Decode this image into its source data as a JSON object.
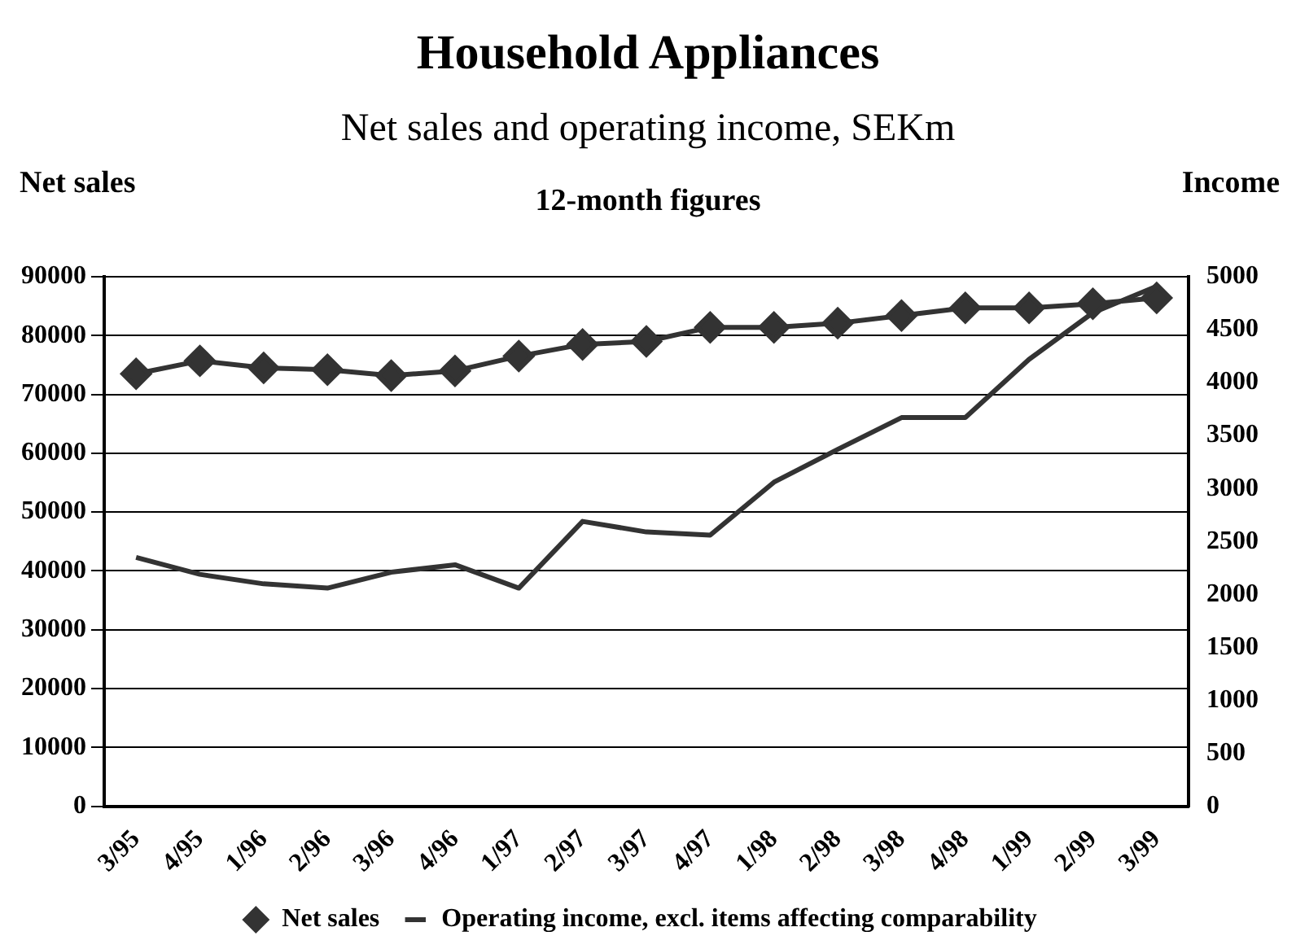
{
  "chart_data": {
    "type": "line",
    "title": "Household Appliances",
    "subtitle": "Net sales and operating income, SEKm",
    "ylabel": "Net sales",
    "y2label": "Income",
    "annotations": [
      "12-month figures"
    ],
    "categories": [
      "3/95",
      "4/95",
      "1/96",
      "2/96",
      "3/96",
      "4/96",
      "1/97",
      "2/97",
      "3/97",
      "4/97",
      "1/98",
      "2/98",
      "3/98",
      "4/98",
      "1/99",
      "2/99",
      "3/99"
    ],
    "series": [
      {
        "name": "Net sales",
        "color": "#333333",
        "marker": "diamond",
        "values": [
          73500,
          75700,
          74500,
          74200,
          73200,
          74000,
          76500,
          78500,
          79000,
          81400,
          81400,
          82100,
          83400,
          84700,
          84700,
          85400,
          86400
        ]
      },
      {
        "name": "Operating income, excl. items affecting comparability",
        "color": "#333333",
        "marker": "none",
        "axis": "y2",
        "values": [
          2350,
          2190,
          2100,
          2060,
          2210,
          2280,
          2060,
          2690,
          2590,
          2560,
          3060,
          3370,
          3670,
          3670,
          4220,
          4660,
          4910
        ]
      }
    ],
    "ylim": [
      0,
      90000
    ],
    "yticks": [
      0,
      10000,
      20000,
      30000,
      40000,
      50000,
      60000,
      70000,
      80000,
      90000
    ],
    "y2lim": [
      0,
      5000
    ],
    "y2ticks": [
      0,
      500,
      1000,
      1500,
      2000,
      2500,
      3000,
      3500,
      4000,
      4500,
      5000
    ],
    "grid": "y",
    "legend": "bottom"
  }
}
